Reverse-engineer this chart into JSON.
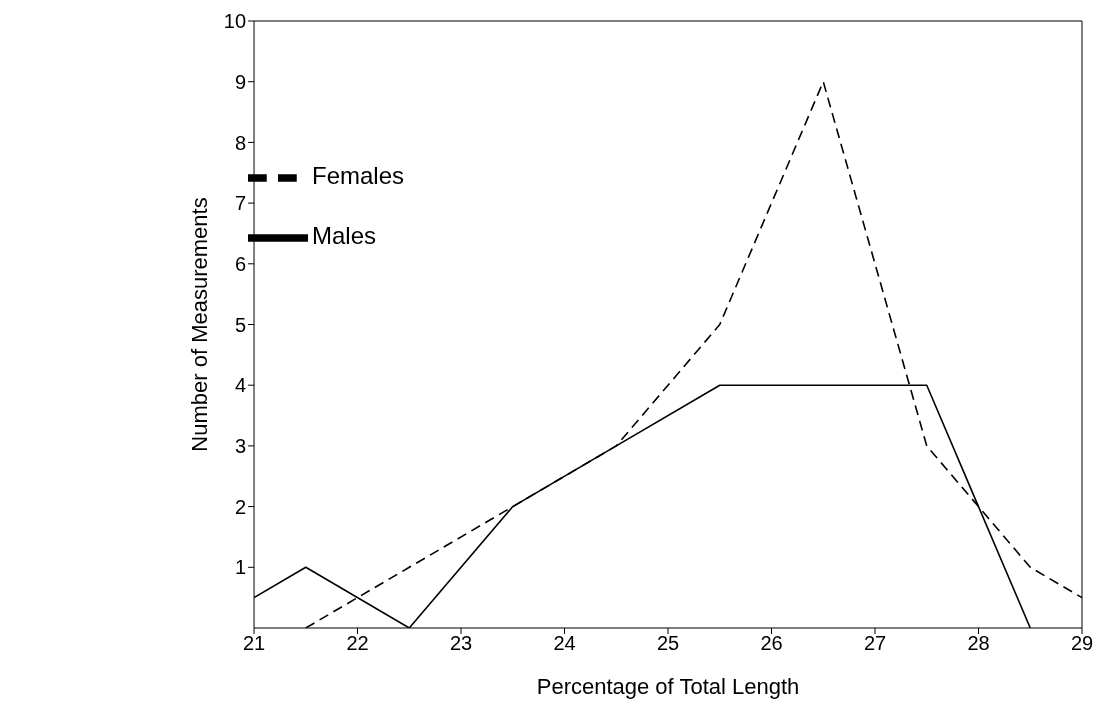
{
  "chart_data": {
    "type": "line",
    "xlabel": "Percentage of Total Length",
    "ylabel": "Number of Measurements",
    "series": [
      {
        "name": "Males",
        "color": "#000000",
        "line_style": "solid",
        "x": [
          21,
          21.5,
          22.5,
          23.5,
          24.5,
          25.5,
          26.5,
          27.5,
          28,
          28.5
        ],
        "values": [
          0.5,
          1,
          0,
          2,
          3,
          4,
          4,
          4,
          2,
          0
        ]
      },
      {
        "name": "Females",
        "color": "#000000",
        "line_style": "dashed",
        "x": [
          21.5,
          22.5,
          23.5,
          24.5,
          25.5,
          26.5,
          27.5,
          28,
          28.5,
          29
        ],
        "values": [
          0,
          1,
          2,
          3,
          5,
          9,
          3,
          2,
          1,
          0.5
        ]
      }
    ],
    "xlim": [
      21,
      29
    ],
    "xticks": [
      21,
      22,
      23,
      24,
      25,
      26,
      27,
      28,
      29
    ],
    "ylim": [
      0,
      10
    ],
    "yticks": [
      1,
      2,
      3,
      4,
      5,
      6,
      7,
      8,
      9,
      10
    ],
    "grid": false,
    "legend": "top left",
    "marker": "none"
  }
}
